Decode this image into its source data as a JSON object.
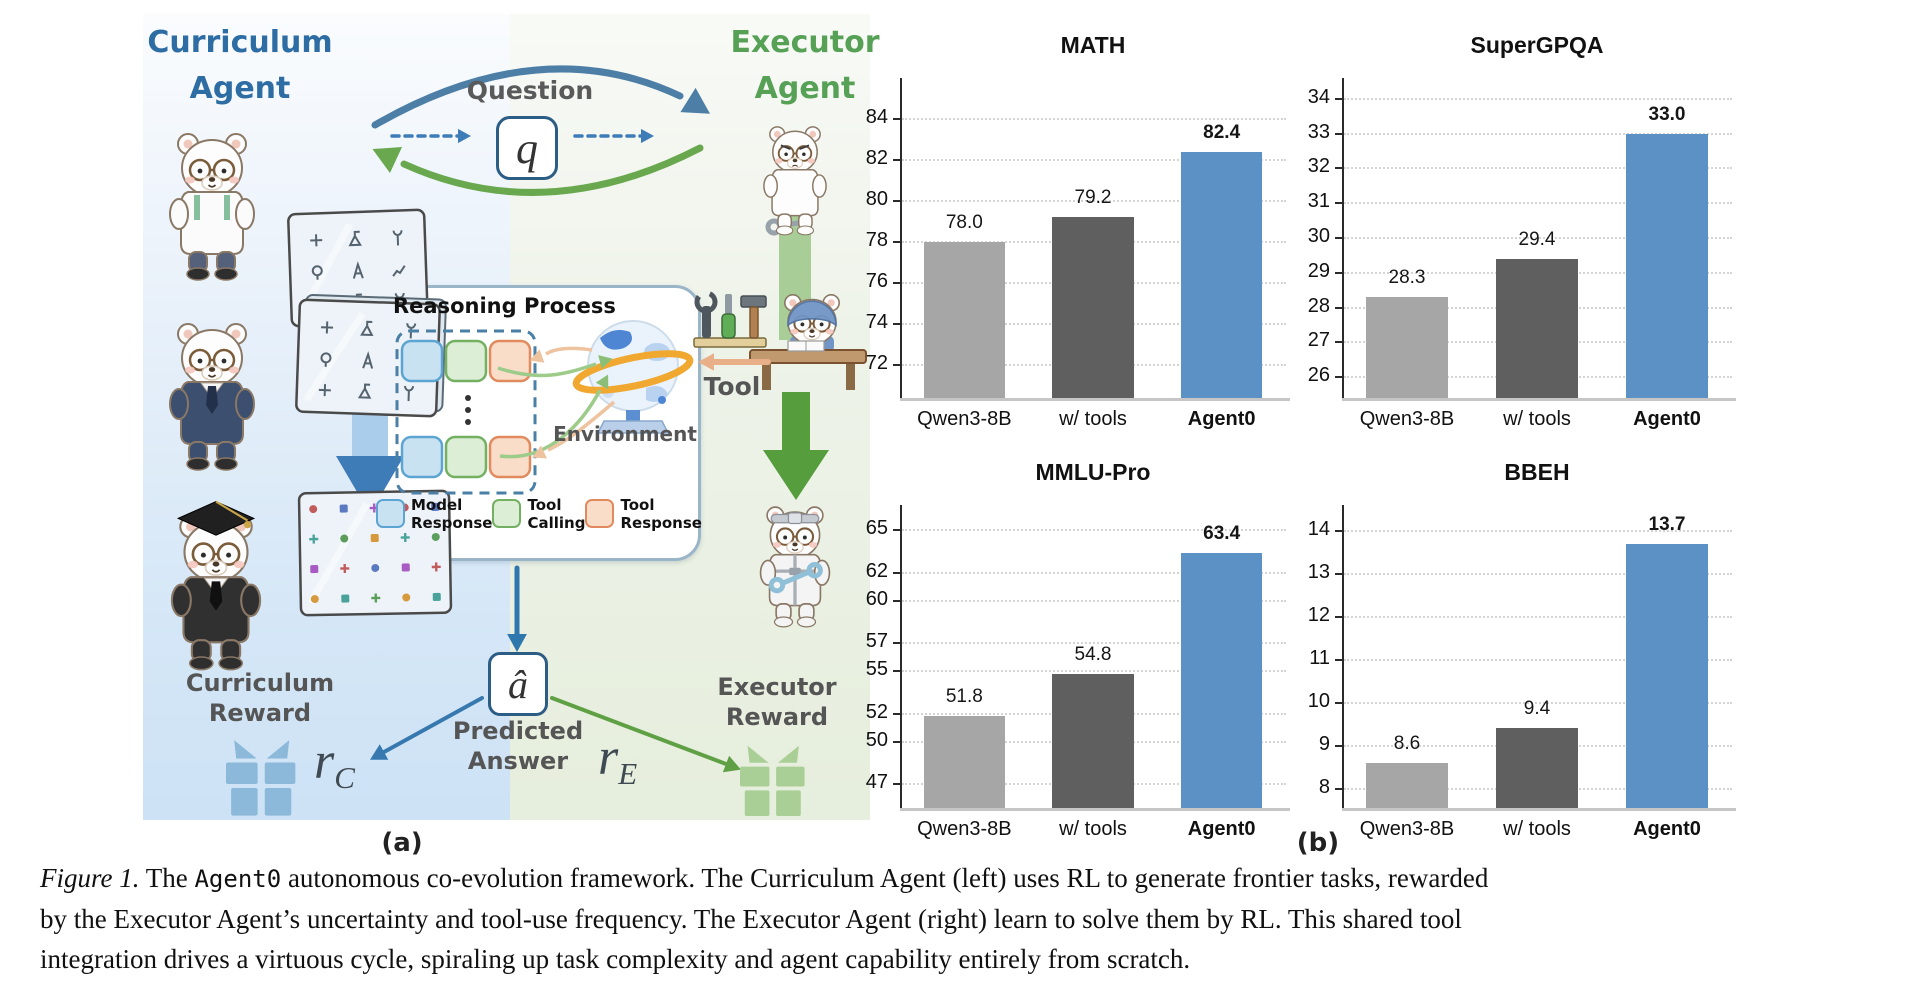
{
  "figure": {
    "panel_a_label": "(a)",
    "panel_b_label": "(b)"
  },
  "diagram": {
    "background_colors": {
      "curriculum_side": "#cde2f5",
      "executor_side": "#e6eedd"
    },
    "curriculum_agent": {
      "line1": "Curriculum",
      "line2": "Agent",
      "color": "#2d6da3"
    },
    "executor_agent": {
      "line1": "Executor",
      "line2": "Agent",
      "color": "#57a157"
    },
    "question": {
      "label": "Question",
      "symbol": "q"
    },
    "reasoning": {
      "title": "Reasoning Process"
    },
    "environment_label": "Environment",
    "tool_label": "Tool",
    "legend": [
      {
        "name": "model-response",
        "line1": "Model",
        "line2": "Response",
        "fill": "#c9e2f2",
        "border": "#5ca4d2"
      },
      {
        "name": "tool-calling",
        "line1": "Tool",
        "line2": "Calling",
        "fill": "#ddeed6",
        "border": "#74b062"
      },
      {
        "name": "tool-response",
        "line1": "Tool",
        "line2": "Response",
        "fill": "#f9ddc9",
        "border": "#e08a5d"
      }
    ],
    "predicted_answer": {
      "symbol": "â",
      "line1": "Predicted",
      "line2": "Answer"
    },
    "curriculum_reward": {
      "line1": "Curriculum",
      "line2": "Reward",
      "symbol": "r",
      "sub": "C",
      "gift_color": "#8cb9da"
    },
    "executor_reward": {
      "line1": "Executor",
      "line2": "Reward",
      "symbol": "r",
      "sub": "E",
      "gift_color": "#a9cf97"
    },
    "arrow_colors": {
      "question_arc": "#4c7ea6",
      "answer_arc": "#69a84e",
      "tool_flow": "#e9af88",
      "curriculum_flow": "#3e7cb8",
      "executor_flow": "#569d3d"
    }
  },
  "chart_data": [
    {
      "type": "bar",
      "title": "MATH",
      "categories": [
        "Qwen3-8B",
        "w/ tools",
        "Agent0"
      ],
      "values": [
        78.0,
        79.2,
        82.4
      ],
      "value_labels": [
        "78.0",
        "79.2",
        "82.4"
      ],
      "yticks": [
        72,
        74,
        76,
        78,
        80,
        82,
        84
      ],
      "ylim": [
        70.4,
        86.0
      ],
      "bar_colors": [
        "#a6a6a6",
        "#5f5f5f",
        "#5b91c4"
      ],
      "emphasized_index": 2,
      "grid": true,
      "legend_position": "none",
      "xlabel": "",
      "ylabel": ""
    },
    {
      "type": "bar",
      "title": "SuperGPQA",
      "categories": [
        "Qwen3-8B",
        "w/ tools",
        "Agent0"
      ],
      "values": [
        28.3,
        29.4,
        33.0
      ],
      "value_labels": [
        "28.3",
        "29.4",
        "33.0"
      ],
      "yticks": [
        26,
        27,
        28,
        29,
        30,
        31,
        32,
        33,
        34
      ],
      "ylim": [
        25.4,
        34.6
      ],
      "bar_colors": [
        "#a6a6a6",
        "#5f5f5f",
        "#5b91c4"
      ],
      "emphasized_index": 2,
      "grid": true,
      "legend_position": "none",
      "xlabel": "",
      "ylabel": ""
    },
    {
      "type": "bar",
      "title": "MMLU-Pro",
      "categories": [
        "Qwen3-8B",
        "w/ tools",
        "Agent0"
      ],
      "values": [
        51.8,
        54.8,
        63.4
      ],
      "value_labels": [
        "51.8",
        "54.8",
        "63.4"
      ],
      "yticks": [
        47,
        50,
        52,
        55,
        57,
        60,
        62,
        65
      ],
      "ylim": [
        45.3,
        66.8
      ],
      "bar_colors": [
        "#a6a6a6",
        "#5f5f5f",
        "#5b91c4"
      ],
      "emphasized_index": 2,
      "grid": true,
      "legend_position": "none",
      "xlabel": "",
      "ylabel": ""
    },
    {
      "type": "bar",
      "title": "BBEH",
      "categories": [
        "Qwen3-8B",
        "w/ tools",
        "Agent0"
      ],
      "values": [
        8.6,
        9.4,
        13.7
      ],
      "value_labels": [
        "8.6",
        "9.4",
        "13.7"
      ],
      "yticks": [
        8,
        9,
        10,
        11,
        12,
        13,
        14
      ],
      "ylim": [
        7.55,
        14.6
      ],
      "bar_colors": [
        "#a6a6a6",
        "#5f5f5f",
        "#5b91c4"
      ],
      "emphasized_index": 2,
      "grid": true,
      "legend_position": "none",
      "xlabel": "",
      "ylabel": ""
    }
  ],
  "caption": {
    "lines": [
      [
        {
          "t": "Figure 1.",
          "s": "fig"
        },
        {
          "t": " The ",
          "s": "serif"
        },
        {
          "t": "Agent0",
          "s": "mono"
        },
        {
          "t": " autonomous co-evolution framework. The Curriculum Agent (left) uses RL to generate frontier tasks, rewarded",
          "s": "serif"
        }
      ],
      [
        {
          "t": "by the Executor Agent’s uncertainty and tool-use frequency. The Executor Agent (right) learn to solve them by RL. This shared tool",
          "s": "serif"
        }
      ],
      [
        {
          "t": "integration drives a virtuous cycle, spiraling up task complexity and agent capability entirely from scratch.",
          "s": "serif"
        }
      ]
    ]
  }
}
